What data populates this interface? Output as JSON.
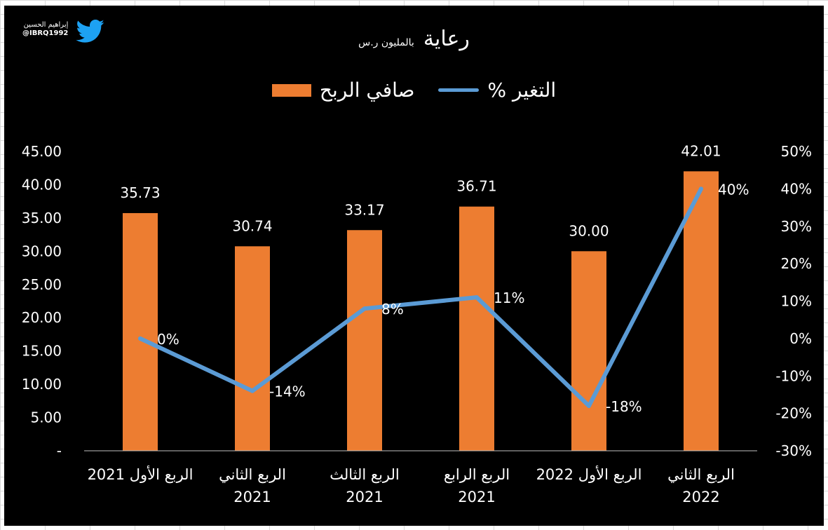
{
  "watermark": {
    "name": "إبراهيم الحسين",
    "handle": "@IBRQ1992",
    "icon": "twitter-bird-icon"
  },
  "colors": {
    "background": "#000000",
    "bar": "#ed7d31",
    "line": "#5b9bd5",
    "text": "#ffffff"
  },
  "chart_data": {
    "type": "bar",
    "title": "رعاية",
    "subtitle": "بالمليون ر.س",
    "legend_placement": "top-center",
    "grid": false,
    "categories": [
      [
        "الربع الأول 2021"
      ],
      [
        "الربع الثاني",
        "2021"
      ],
      [
        "الربع الثالث",
        "2021"
      ],
      [
        "الربع الرابع",
        "2021"
      ],
      [
        "الربع الأول 2022"
      ],
      [
        "الربع الثاني",
        "2022"
      ]
    ],
    "series": [
      {
        "name": "صافي الربح",
        "type": "bar",
        "axis": "left",
        "values": [
          35.73,
          30.74,
          33.17,
          36.71,
          30.0,
          42.01
        ],
        "labels": [
          "35.73",
          "30.74",
          "33.17",
          "36.71",
          "30.00",
          "42.01"
        ]
      },
      {
        "name": "التغير %",
        "type": "line",
        "axis": "right",
        "values": [
          0,
          -14,
          8,
          11,
          -18,
          40
        ],
        "labels": [
          "0%",
          "-14%",
          "8%",
          "11%",
          "-18%",
          "40%"
        ]
      }
    ],
    "y_left": {
      "ylim": [
        0,
        45
      ],
      "ticks": [
        0,
        5,
        10,
        15,
        20,
        25,
        30,
        35,
        40,
        45
      ],
      "tick_labels": [
        "-",
        "5.00",
        "10.00",
        "15.00",
        "20.00",
        "25.00",
        "30.00",
        "35.00",
        "40.00",
        "45.00"
      ]
    },
    "y_right": {
      "ylim": [
        -30,
        50
      ],
      "ticks": [
        -30,
        -20,
        -10,
        0,
        10,
        20,
        30,
        40,
        50
      ],
      "tick_labels": [
        "-30%",
        "-20%",
        "-10%",
        "0%",
        "10%",
        "20%",
        "30%",
        "40%",
        "50%"
      ]
    }
  }
}
